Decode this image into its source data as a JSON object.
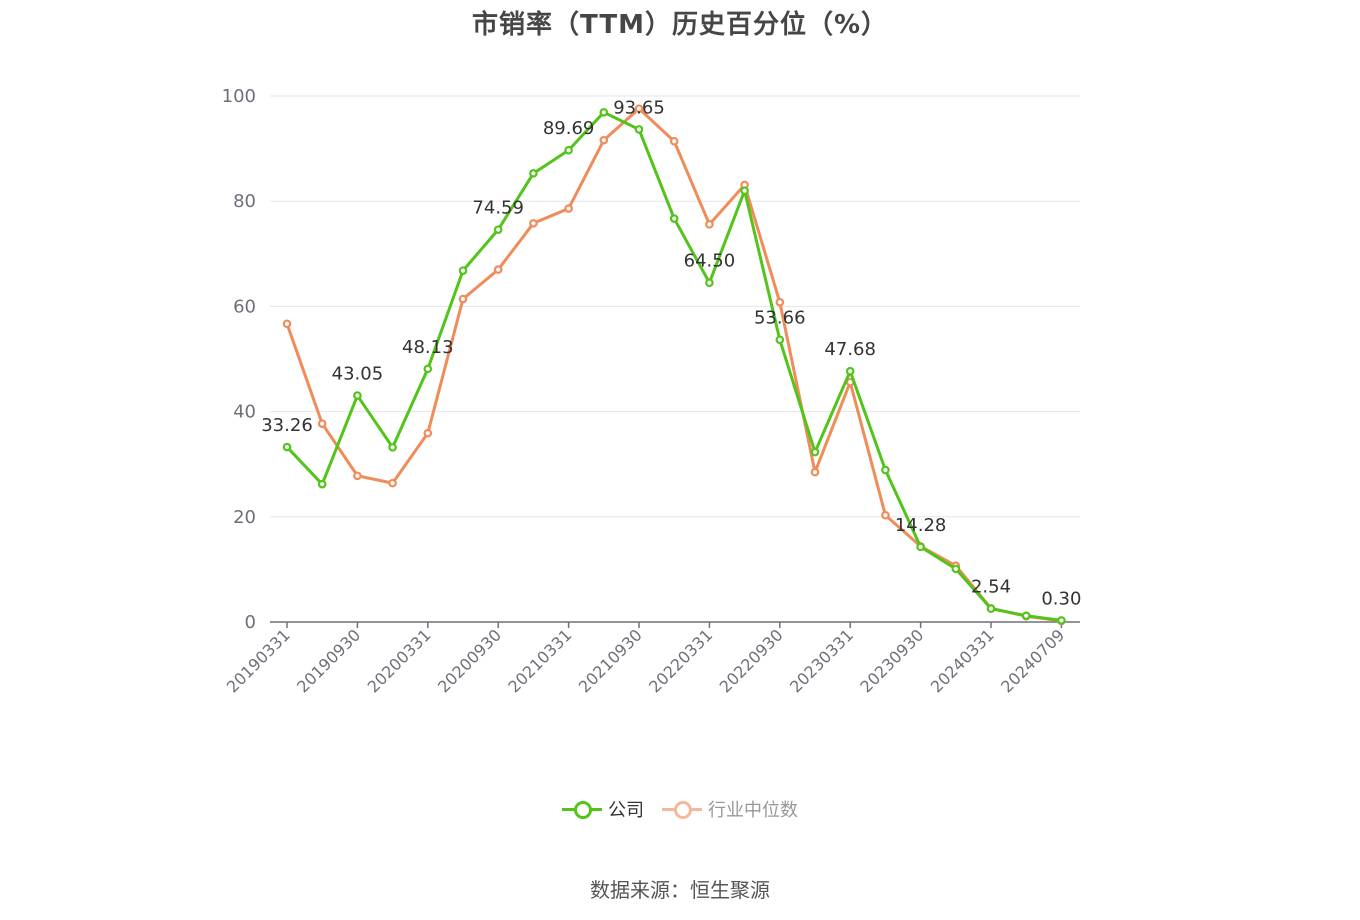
{
  "colors": {
    "company": "#52c41a",
    "industry": "#f08c5a",
    "industry_legend": "#f6b89a",
    "grid": "#e3e6f0",
    "axis": "#6e7079",
    "tick_text": "#6e7079",
    "label_text": "#333333"
  },
  "source": "数据来源：恒生聚源",
  "chart_data": {
    "type": "line",
    "title": "市销率（TTM）历史百分位（%）",
    "xlabel": "",
    "ylabel": "",
    "ylim": [
      0,
      100
    ],
    "yticks": [
      0,
      20,
      40,
      60,
      80,
      100
    ],
    "grid": true,
    "legend_position": "bottom",
    "x": [
      "20190331",
      "20190630",
      "20190930",
      "20191231",
      "20200331",
      "20200630",
      "20200930",
      "20201231",
      "20210331",
      "20210630",
      "20210930",
      "20211231",
      "20220331",
      "20220630",
      "20220930",
      "20221231",
      "20230331",
      "20230630",
      "20230930",
      "20231231",
      "20240331",
      "20240630",
      "20240709"
    ],
    "x_tick_labels": [
      "20190331",
      "20190930",
      "20200331",
      "20200930",
      "20210331",
      "20210930",
      "20220331",
      "20220930",
      "20230331",
      "20230930",
      "20240331",
      "20240709"
    ],
    "series": [
      {
        "name": "公司",
        "color_key": "company",
        "values": [
          33.26,
          26.2,
          43.05,
          33.2,
          48.13,
          66.8,
          74.59,
          85.3,
          89.69,
          96.9,
          93.65,
          76.7,
          64.5,
          82.0,
          53.66,
          32.3,
          47.68,
          28.9,
          14.28,
          10.1,
          2.54,
          1.2,
          0.3
        ],
        "labels": [
          "33.26",
          null,
          "43.05",
          null,
          "48.13",
          null,
          "74.59",
          null,
          "89.69",
          null,
          "93.65",
          null,
          "64.50",
          null,
          "53.66",
          null,
          "47.68",
          null,
          "14.28",
          null,
          "2.54",
          null,
          "0.30"
        ]
      },
      {
        "name": "行业中位数",
        "color_key": "industry",
        "values": [
          56.7,
          37.7,
          27.8,
          26.4,
          35.9,
          61.4,
          67.0,
          75.8,
          78.6,
          91.6,
          97.6,
          91.4,
          75.6,
          83.1,
          60.8,
          28.5,
          45.6,
          20.3,
          14.4,
          10.7,
          2.6,
          1.1,
          0.2
        ],
        "labels": []
      }
    ]
  }
}
